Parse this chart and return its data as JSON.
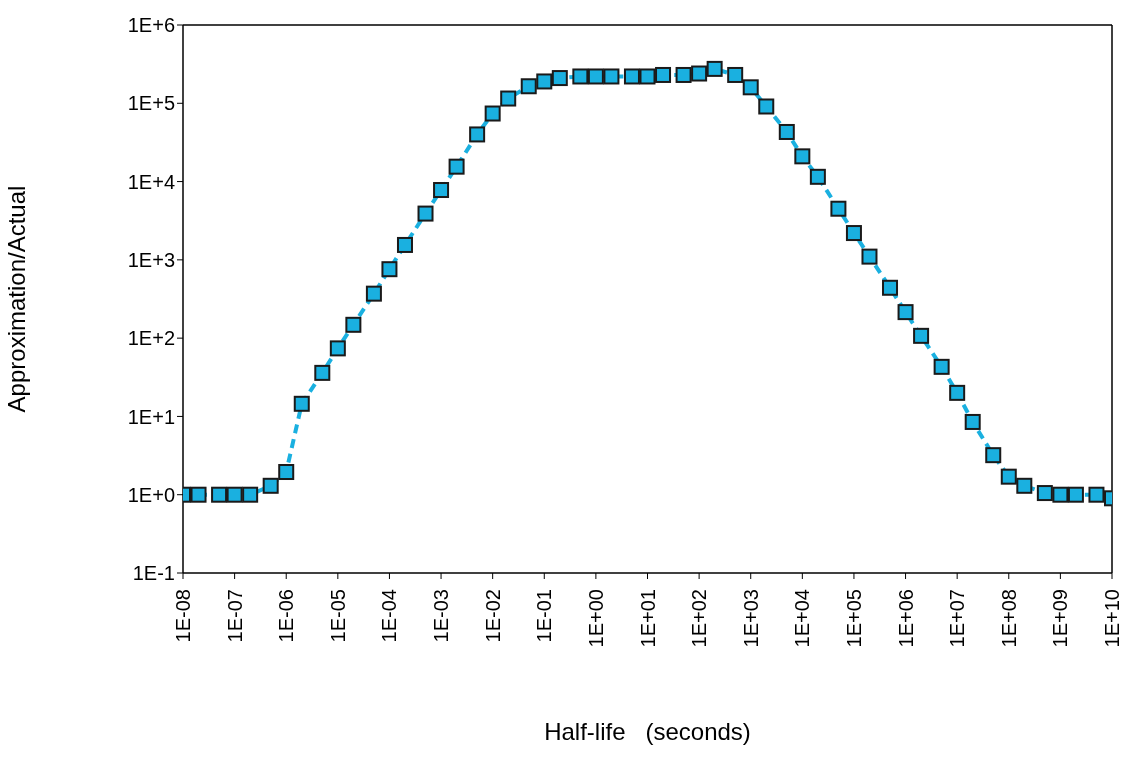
{
  "chart_data": {
    "type": "line",
    "xlabel": "Half-life   (seconds)",
    "ylabel": "Approximation/Actual",
    "log": "xy",
    "grid": false,
    "legend": false,
    "marker": "square",
    "line_style": "dashed",
    "x": [
      1e-08,
      2e-08,
      5e-08,
      1e-07,
      2e-07,
      5e-07,
      1e-06,
      2e-06,
      5e-06,
      1e-05,
      2e-05,
      5e-05,
      0.0001,
      0.0002,
      0.0005,
      0.001,
      0.002,
      0.005,
      0.01,
      0.02,
      0.05,
      0.1,
      0.2,
      0.5,
      1,
      2,
      5,
      10,
      20,
      50,
      100,
      200,
      500,
      1000.0,
      2000.0,
      5000.0,
      10000.0,
      20000.0,
      50000.0,
      100000.0,
      200000.0,
      500000.0,
      1000000.0,
      2000000.0,
      5000000.0,
      10000000.0,
      20000000.0,
      50000000.0,
      100000000.0,
      200000000.0,
      500000000.0,
      1000000000.0,
      2000000000.0,
      5000000000.0,
      10000000000.0
    ],
    "series": [
      {
        "color": "#1ab0e0",
        "values": [
          1,
          1,
          1,
          1,
          1,
          1.3,
          1.95,
          14.5,
          36,
          74,
          148,
          370,
          760,
          1550,
          3900,
          7800,
          15500,
          40000,
          74000,
          115000,
          165000,
          190000,
          210000,
          220000,
          220000,
          220000,
          220000,
          220000,
          230000,
          230000,
          240000,
          275000,
          230000,
          160000,
          91000,
          43000,
          21000,
          11500,
          4500,
          2200,
          1100,
          440,
          215,
          107,
          43,
          20,
          8.5,
          3.2,
          1.7,
          1.3,
          1.05,
          1,
          1,
          1,
          0.9
        ]
      }
    ],
    "xlim": [
      1e-08,
      10000000000.0
    ],
    "ylim": [
      0.1,
      1000000
    ],
    "xticks": [
      {
        "value": 1e-08,
        "label": "1E-08"
      },
      {
        "value": 1e-07,
        "label": "1E-07"
      },
      {
        "value": 1e-06,
        "label": "1E-06"
      },
      {
        "value": 1e-05,
        "label": "1E-05"
      },
      {
        "value": 0.0001,
        "label": "1E-04"
      },
      {
        "value": 0.001,
        "label": "1E-03"
      },
      {
        "value": 0.01,
        "label": "1E-02"
      },
      {
        "value": 0.1,
        "label": "1E-01"
      },
      {
        "value": 1,
        "label": "1E+00"
      },
      {
        "value": 10,
        "label": "1E+01"
      },
      {
        "value": 100,
        "label": "1E+02"
      },
      {
        "value": 1000,
        "label": "1E+03"
      },
      {
        "value": 10000.0,
        "label": "1E+04"
      },
      {
        "value": 100000.0,
        "label": "1E+05"
      },
      {
        "value": 1000000.0,
        "label": "1E+06"
      },
      {
        "value": 10000000.0,
        "label": "1E+07"
      },
      {
        "value": 100000000.0,
        "label": "1E+08"
      },
      {
        "value": 1000000000.0,
        "label": "1E+09"
      },
      {
        "value": 10000000000.0,
        "label": "1E+10"
      }
    ],
    "yticks": [
      {
        "value": 0.1,
        "label": "1E-1"
      },
      {
        "value": 1,
        "label": "1E+0"
      },
      {
        "value": 10,
        "label": "1E+1"
      },
      {
        "value": 100,
        "label": "1E+2"
      },
      {
        "value": 1000,
        "label": "1E+3"
      },
      {
        "value": 10000,
        "label": "1E+4"
      },
      {
        "value": 100000,
        "label": "1E+5"
      },
      {
        "value": 1000000,
        "label": "1E+6"
      }
    ]
  }
}
